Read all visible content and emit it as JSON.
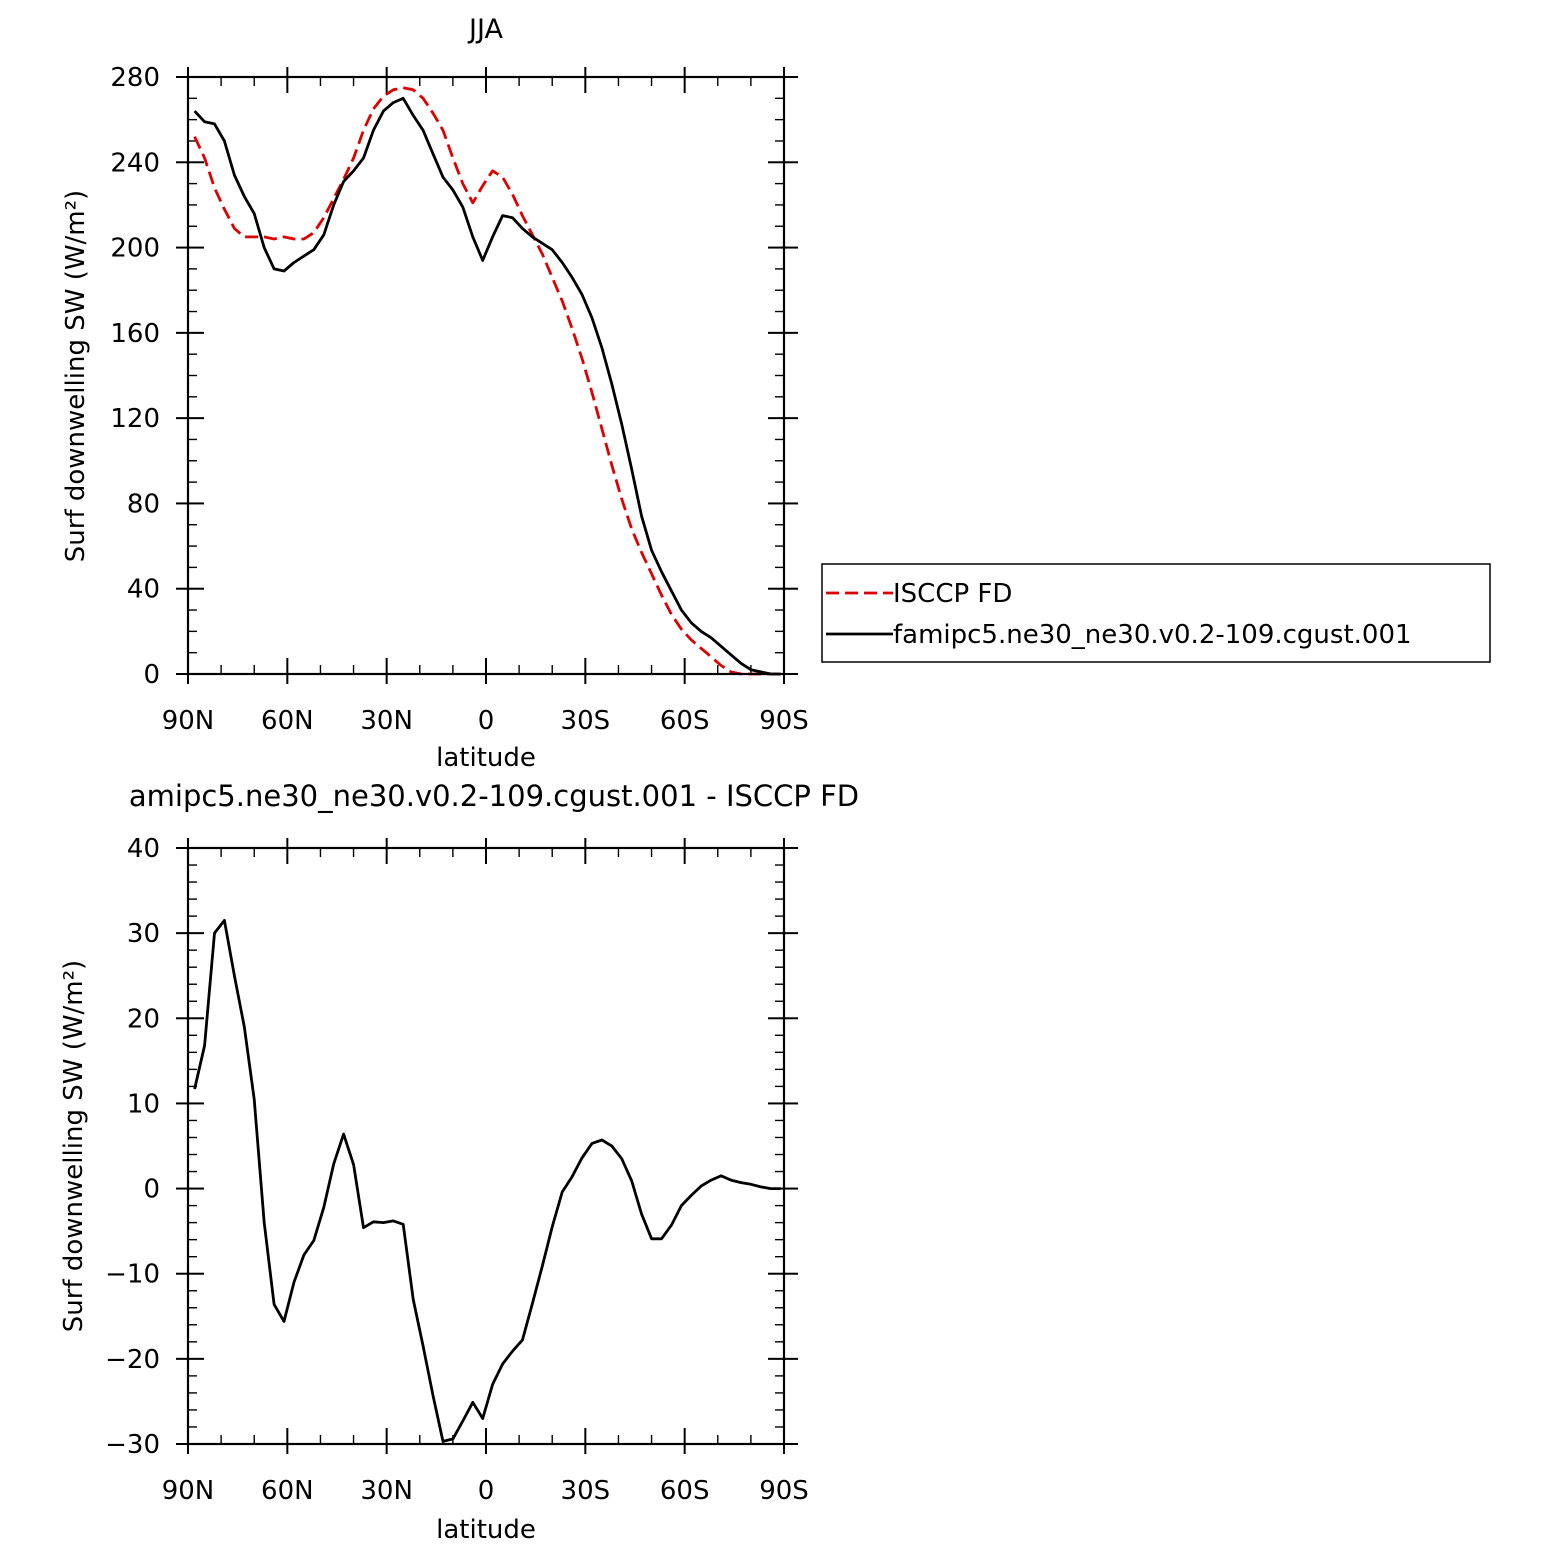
{
  "figure": {
    "top_title": "JJA",
    "bottom_title": "amipc5.ne30_ne30.v0.2-109.cgust.001 - ISCCP FD"
  },
  "colors": {
    "obs": "#e00000",
    "model": "#000000"
  },
  "chart_data": [
    {
      "type": "line",
      "title": "JJA",
      "xlabel": "latitude",
      "ylabel": "Surf downwelling SW (W/m²)",
      "xlim": [
        90,
        -90
      ],
      "ylim": [
        0,
        280
      ],
      "x_ticks": [
        90,
        60,
        30,
        0,
        -30,
        -60,
        -90
      ],
      "x_tick_labels": [
        "90N",
        "60N",
        "30N",
        "0",
        "30S",
        "60S",
        "90S"
      ],
      "y_ticks": [
        0,
        40,
        80,
        120,
        160,
        200,
        240,
        280
      ],
      "y_tick_labels": [
        "0",
        "40",
        "80",
        "120",
        "160",
        "200",
        "240",
        "280"
      ],
      "legend": "right",
      "series": [
        {
          "name": "ISCCP FD",
          "style": "dashed",
          "color": "#e00000",
          "x": [
            88,
            85,
            82,
            79,
            76,
            73,
            70,
            67,
            64,
            61,
            58,
            55,
            52,
            49,
            46,
            43,
            40,
            37,
            34,
            31,
            28,
            25,
            22,
            19,
            16,
            13,
            10,
            7,
            4,
            1,
            -2,
            -5,
            -8,
            -11,
            -14,
            -17,
            -20,
            -23,
            -26,
            -29,
            -32,
            -35,
            -38,
            -41,
            -44,
            -47,
            -50,
            -53,
            -56,
            -59,
            -62,
            -65,
            -68,
            -71,
            -74,
            -77,
            -80,
            -83,
            -86,
            -89
          ],
          "y": [
            252,
            242,
            228,
            218,
            209,
            205,
            205,
            205,
            204,
            205,
            204,
            204,
            207,
            214,
            223,
            232,
            242,
            255,
            265,
            271,
            274,
            275,
            274,
            270,
            263,
            255,
            242,
            230,
            221,
            229,
            236,
            233,
            225,
            215,
            206,
            197,
            186,
            175,
            162,
            148,
            132,
            115,
            98,
            82,
            68,
            57,
            47,
            37,
            28,
            21,
            16,
            12,
            8,
            4,
            1,
            0,
            0,
            0,
            0,
            0
          ]
        },
        {
          "name": "famipc5.ne30_ne30.v0.2-109.cgust.001",
          "style": "solid",
          "color": "#000000",
          "x": [
            88,
            85,
            82,
            79,
            76,
            73,
            70,
            67,
            64,
            61,
            58,
            55,
            52,
            49,
            46,
            43,
            40,
            37,
            34,
            31,
            28,
            25,
            22,
            19,
            16,
            13,
            10,
            7,
            4,
            1,
            -2,
            -5,
            -8,
            -11,
            -14,
            -17,
            -20,
            -23,
            -26,
            -29,
            -32,
            -35,
            -38,
            -41,
            -44,
            -47,
            -50,
            -53,
            -56,
            -59,
            -62,
            -65,
            -68,
            -71,
            -74,
            -77,
            -80,
            -83,
            -86,
            -89
          ],
          "y": [
            264,
            259,
            258,
            250,
            234,
            224,
            216,
            200,
            190,
            189,
            193,
            196,
            199,
            206,
            220,
            231,
            236,
            242,
            255,
            264,
            268,
            270,
            262,
            255,
            244,
            233,
            227,
            219,
            205,
            194,
            205,
            215,
            214,
            209,
            205,
            202,
            199,
            193,
            186,
            178,
            167,
            153,
            136,
            117,
            96,
            74,
            58,
            48,
            39,
            30,
            24,
            20,
            17,
            13,
            9,
            5,
            2,
            1,
            0,
            0
          ]
        }
      ]
    },
    {
      "type": "line",
      "title": "amipc5.ne30_ne30.v0.2-109.cgust.001 - ISCCP FD",
      "xlabel": "latitude",
      "ylabel": "Surf downwelling SW (W/m²)",
      "xlim": [
        90,
        -90
      ],
      "ylim": [
        -30,
        40
      ],
      "x_ticks": [
        90,
        60,
        30,
        0,
        -30,
        -60,
        -90
      ],
      "x_tick_labels": [
        "90N",
        "60N",
        "30N",
        "0",
        "30S",
        "60S",
        "90S"
      ],
      "y_ticks": [
        -30,
        -20,
        -10,
        0,
        10,
        20,
        30,
        40
      ],
      "y_tick_labels": [
        "−30",
        "−20",
        "−10",
        "0",
        "10",
        "20",
        "30",
        "40"
      ],
      "series": [
        {
          "style": "solid",
          "color": "#000000",
          "x": [
            88,
            85,
            82,
            79,
            76,
            73,
            70,
            67,
            64,
            61,
            58,
            55,
            52,
            49,
            46,
            43,
            40,
            37,
            34,
            31,
            28,
            25,
            22,
            19,
            16,
            13,
            10,
            7,
            4,
            1,
            -2,
            -5,
            -8,
            -11,
            -14,
            -17,
            -20,
            -23,
            -26,
            -29,
            -32,
            -35,
            -38,
            -41,
            -44,
            -47,
            -50,
            -53,
            -56,
            -59,
            -62,
            -65,
            -68,
            -71,
            -74,
            -77,
            -80,
            -83,
            -86,
            -89
          ],
          "y": [
            11.7,
            16.8,
            30,
            31.5,
            25,
            19,
            10.5,
            -4,
            -13.6,
            -15.6,
            -11,
            -7.8,
            -6.1,
            -2.2,
            2.9,
            6.4,
            2.8,
            -4.6,
            -3.9,
            -4,
            -3.8,
            -4.2,
            -13,
            -18.5,
            -24.3,
            -29.7,
            -29.4,
            -27.3,
            -25.1,
            -27,
            -23,
            -20.6,
            -19.1,
            -17.8,
            -13.5,
            -9.1,
            -4.5,
            -0.4,
            1.4,
            3.6,
            5.3,
            5.7,
            5.0,
            3.5,
            0.9,
            -3,
            -5.9,
            -5.9,
            -4.3,
            -2,
            -0.8,
            0.3,
            1,
            1.5,
            1,
            0.7,
            0.5,
            0.2,
            0,
            0
          ]
        }
      ]
    }
  ]
}
